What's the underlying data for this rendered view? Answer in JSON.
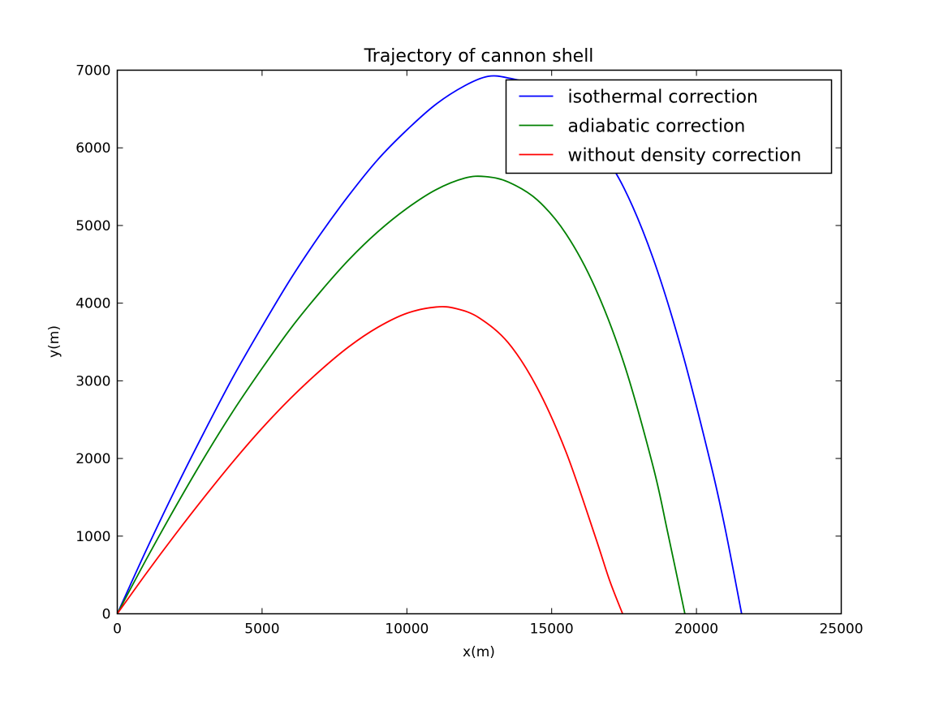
{
  "chart_data": {
    "type": "line",
    "title": "Trajectory of cannon shell",
    "xlabel": "x(m)",
    "ylabel": "y(m)",
    "xlim": [
      0,
      25000
    ],
    "ylim": [
      0,
      7000
    ],
    "xticks": [
      0,
      5000,
      10000,
      15000,
      20000,
      25000
    ],
    "yticks": [
      0,
      1000,
      2000,
      3000,
      4000,
      5000,
      6000,
      7000
    ],
    "xtick_labels": [
      "0",
      "5000",
      "10000",
      "15000",
      "20000",
      "25000"
    ],
    "ytick_labels": [
      "0",
      "1000",
      "2000",
      "3000",
      "4000",
      "5000",
      "6000",
      "7000"
    ],
    "grid": false,
    "legend_position": "top-right",
    "series": [
      {
        "name": "isothermal correction",
        "color": "#0000ff",
        "x": [
          0,
          1000,
          2000,
          3000,
          4000,
          5000,
          6000,
          7000,
          8000,
          9000,
          10000,
          11000,
          12000,
          12800,
          13500,
          14500,
          15500,
          16500,
          17500,
          18500,
          19500,
          20500,
          21000,
          21560
        ],
        "y": [
          0,
          820,
          1600,
          2340,
          3050,
          3700,
          4320,
          4880,
          5390,
          5850,
          6230,
          6560,
          6800,
          6920,
          6900,
          6790,
          6520,
          6080,
          5480,
          4580,
          3380,
          1920,
          1080,
          0
        ]
      },
      {
        "name": "adiabatic correction",
        "color": "#008000",
        "x": [
          0,
          1000,
          2000,
          3000,
          4000,
          5000,
          6000,
          7000,
          8000,
          9000,
          10000,
          11000,
          12000,
          12700,
          13500,
          14500,
          15500,
          16500,
          17500,
          18500,
          19000,
          19600
        ],
        "y": [
          0,
          700,
          1370,
          2010,
          2610,
          3160,
          3680,
          4140,
          4560,
          4920,
          5220,
          5460,
          5610,
          5630,
          5560,
          5330,
          4890,
          4200,
          3220,
          1900,
          1060,
          0
        ]
      },
      {
        "name": "without density correction",
        "color": "#ff0000",
        "x": [
          0,
          1000,
          2000,
          3000,
          4000,
          5000,
          6000,
          7000,
          8000,
          9000,
          10000,
          11000,
          11700,
          12500,
          13500,
          14500,
          15500,
          16500,
          17000,
          17450
        ],
        "y": [
          0,
          520,
          1020,
          1500,
          1960,
          2390,
          2780,
          3130,
          3440,
          3690,
          3870,
          3950,
          3930,
          3810,
          3490,
          2910,
          2080,
          1000,
          430,
          0
        ]
      }
    ]
  }
}
